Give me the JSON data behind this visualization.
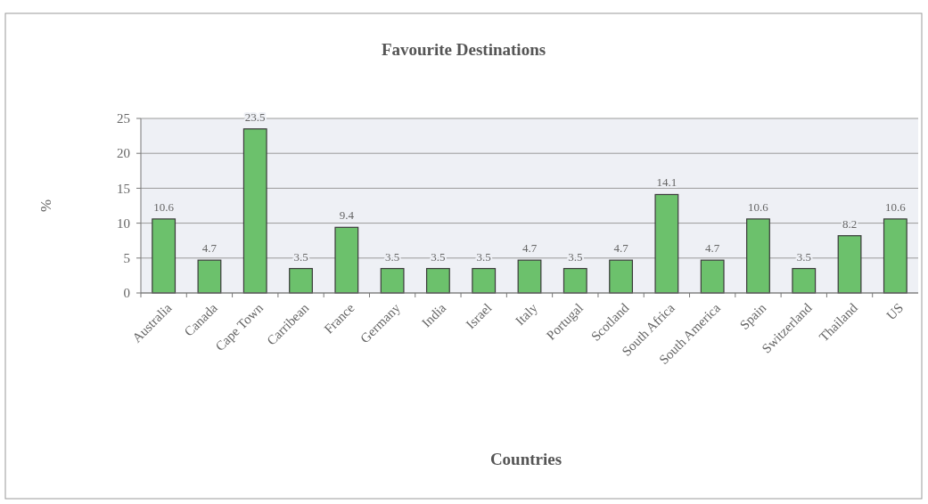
{
  "chart_data": {
    "type": "bar",
    "title": "Favourite Destinations",
    "xlabel": "Countries",
    "ylabel": "%",
    "categories": [
      "Australia",
      "Canada",
      "Cape Town",
      "Carribean",
      "France",
      "Germany",
      "India",
      "Israel",
      "Italy",
      "Portugal",
      "Scotland",
      "South Africa",
      "South America",
      "Spain",
      "Switzerland",
      "Thailand",
      "US"
    ],
    "values": [
      10.6,
      4.7,
      23.5,
      3.5,
      9.4,
      3.5,
      3.5,
      3.5,
      4.7,
      3.5,
      4.7,
      14.1,
      4.7,
      10.6,
      3.5,
      8.2,
      10.6
    ],
    "color": "#6cc16c",
    "ylim": [
      0,
      25
    ],
    "yticks": [
      0,
      5,
      10,
      15,
      20,
      25
    ],
    "grid": true,
    "data_labels": true
  }
}
